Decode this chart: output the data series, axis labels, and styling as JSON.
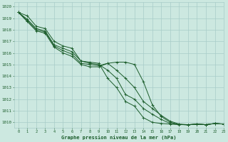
{
  "title": "Graphe pression niveau de la mer (hPa)",
  "bg_color": "#cce8e0",
  "grid_color": "#a8ccc8",
  "line_color": "#1a5c2a",
  "xlim": [
    -0.5,
    23
  ],
  "ylim": [
    1009.5,
    1020.4
  ],
  "yticks": [
    1010,
    1011,
    1012,
    1013,
    1014,
    1015,
    1016,
    1017,
    1018,
    1019,
    1020
  ],
  "xticks": [
    0,
    1,
    2,
    3,
    4,
    5,
    6,
    7,
    8,
    9,
    10,
    11,
    12,
    13,
    14,
    15,
    16,
    17,
    18,
    19,
    20,
    21,
    22,
    23
  ],
  "series": [
    [
      1019.5,
      1019.2,
      1018.3,
      1018.1,
      1017.0,
      1016.6,
      1016.4,
      1015.3,
      1015.2,
      1015.1,
      1013.8,
      1013.0,
      1011.8,
      1011.4,
      1010.4,
      1010.0,
      1009.9,
      1009.85,
      1009.8,
      1009.8,
      1009.85,
      1009.8,
      1009.9,
      1009.85
    ],
    [
      1019.5,
      1018.9,
      1018.1,
      1017.9,
      1016.7,
      1016.4,
      1016.1,
      1015.3,
      1015.1,
      1015.0,
      1014.5,
      1013.8,
      1012.4,
      1012.0,
      1011.2,
      1010.7,
      1010.25,
      1009.9,
      1009.82,
      1009.78,
      1009.85,
      1009.8,
      1009.9,
      1009.85
    ],
    [
      1019.5,
      1018.8,
      1018.0,
      1017.8,
      1016.6,
      1016.2,
      1015.9,
      1015.1,
      1015.0,
      1014.9,
      1015.1,
      1014.5,
      1013.8,
      1013.0,
      1011.8,
      1011.2,
      1010.6,
      1010.1,
      1009.85,
      1009.8,
      1009.85,
      1009.8,
      1009.9,
      1009.85
    ],
    [
      1019.5,
      1018.7,
      1017.9,
      1017.7,
      1016.5,
      1016.0,
      1015.7,
      1015.0,
      1014.8,
      1014.8,
      1015.1,
      1015.2,
      1015.2,
      1015.0,
      1013.5,
      1011.5,
      1010.5,
      1010.0,
      1009.82,
      1009.78,
      1009.85,
      1009.8,
      1009.9,
      1009.85
    ]
  ]
}
